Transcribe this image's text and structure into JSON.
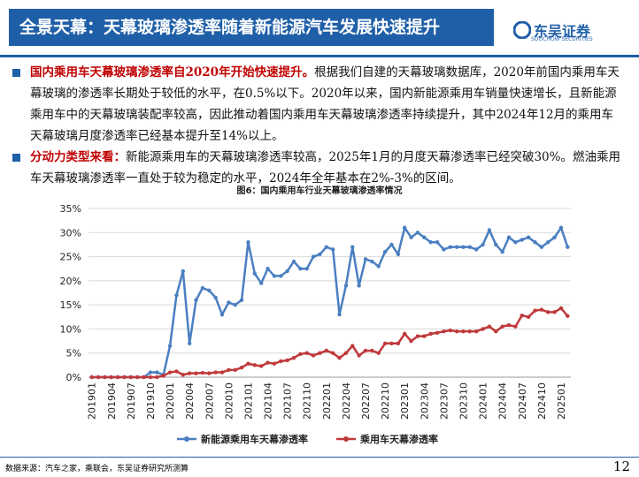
{
  "header": {
    "title": "全景天幕：天幕玻璃渗透率随着新能源汽车发展快速提升",
    "logo": "东吴证券",
    "logo_sub": "SOOCHOW SECURITIES"
  },
  "bullets": [
    {
      "lead": "国内乘用车天幕玻璃渗透率自2020年开始快速提升。",
      "text": "根据我们自建的天幕玻璃数据库，2020年前国内乘用车天幕玻璃的渗透率长期处于较低的水平，在0.5%以下。2020年以来，国内新能源乘用车销量快速增长，且新能源乘用车中的天幕玻璃装配率较高，因此推动着国内乘用车天幕玻璃渗透率持续提升，其中2024年12月的乘用车天幕玻璃月度渗透率已经基本提升至14%以上。"
    },
    {
      "lead": "分动力类型来看：",
      "text": "新能源乘用车的天幕玻璃渗透率较高，2025年1月的月度天幕渗透率已经突破30%。燃油乘用车天幕玻璃渗透率一直处于较为稳定的水平，2024年全年基本在2%-3%的区间。"
    }
  ],
  "footer": {
    "source": "数据来源：汽车之家，乘联会，东吴证券研究所测算",
    "page": "12"
  },
  "chart_data": {
    "type": "line",
    "title": "图6：国内乘用车行业天幕玻璃渗透率情况",
    "categories": [
      "201901",
      null,
      null,
      "201904",
      null,
      null,
      "201907",
      null,
      null,
      "201910",
      null,
      null,
      "202001",
      null,
      null,
      "202004",
      null,
      null,
      "202007",
      null,
      null,
      "202010",
      null,
      null,
      "202101",
      null,
      null,
      "202104",
      null,
      null,
      "202107",
      null,
      null,
      "202110",
      null,
      null,
      "202201",
      null,
      null,
      "202204",
      null,
      null,
      "202207",
      null,
      null,
      "202210",
      null,
      null,
      "202301",
      null,
      null,
      "202304",
      null,
      null,
      "202307",
      null,
      null,
      "202310",
      null,
      null,
      "202401",
      null,
      null,
      "202404",
      null,
      null,
      "202407",
      null,
      null,
      "202410",
      null,
      null,
      "202501",
      null
    ],
    "series": [
      {
        "name": "新能源乘用车天幕渗透率",
        "color": "#4a7fc1",
        "values": [
          0,
          0,
          0,
          0,
          0,
          0,
          0,
          0,
          0,
          1,
          1,
          0.5,
          6.5,
          17,
          22,
          7,
          16,
          18.5,
          18,
          16.5,
          13,
          15.5,
          15,
          16,
          28,
          21.5,
          19.5,
          22.5,
          21,
          21,
          22,
          24,
          22.5,
          22.5,
          25,
          25.5,
          27,
          26.5,
          13,
          19,
          27,
          19,
          24.5,
          24,
          23,
          26,
          27.5,
          25.5,
          31,
          29,
          30,
          29,
          28,
          28,
          26.5,
          27,
          27,
          27,
          27,
          26.5,
          27.5,
          30.5,
          27.5,
          26,
          29,
          28,
          28.5,
          29,
          28,
          27,
          28,
          29,
          31,
          27
        ]
      },
      {
        "name": "乘用车天幕渗透率",
        "color": "#c0393b",
        "values": [
          0,
          0,
          0,
          0,
          0,
          0,
          0,
          0,
          0,
          0,
          0,
          0.3,
          1,
          1.2,
          0.5,
          0.8,
          0.8,
          0.9,
          0.8,
          1,
          1,
          1.5,
          1.5,
          2,
          2.8,
          2.5,
          2.3,
          3,
          2.8,
          3.3,
          3.5,
          4,
          4.8,
          5,
          4.5,
          5,
          5.5,
          5,
          4,
          5,
          6.5,
          4.5,
          5.5,
          5.5,
          5,
          7,
          7,
          7,
          9,
          7.5,
          8.5,
          8.5,
          9,
          9.2,
          9.5,
          9.7,
          9.5,
          9.5,
          9.5,
          9.5,
          10,
          10.5,
          9.5,
          10.5,
          10.8,
          10.5,
          12.8,
          12.5,
          13.8,
          14,
          13.5,
          13.5,
          14.3,
          12.7
        ]
      }
    ],
    "ylim": [
      0,
      35
    ],
    "yticks": [
      {
        "value": 0,
        "label": "0%"
      },
      {
        "value": 5,
        "label": "5%"
      },
      {
        "value": 10,
        "label": "10%"
      },
      {
        "value": 15,
        "label": "15%"
      },
      {
        "value": 20,
        "label": "20%"
      },
      {
        "value": 25,
        "label": "25%"
      },
      {
        "value": 30,
        "label": "30%"
      },
      {
        "value": 35,
        "label": "35%"
      }
    ],
    "grid": true,
    "legend": "bottom"
  }
}
